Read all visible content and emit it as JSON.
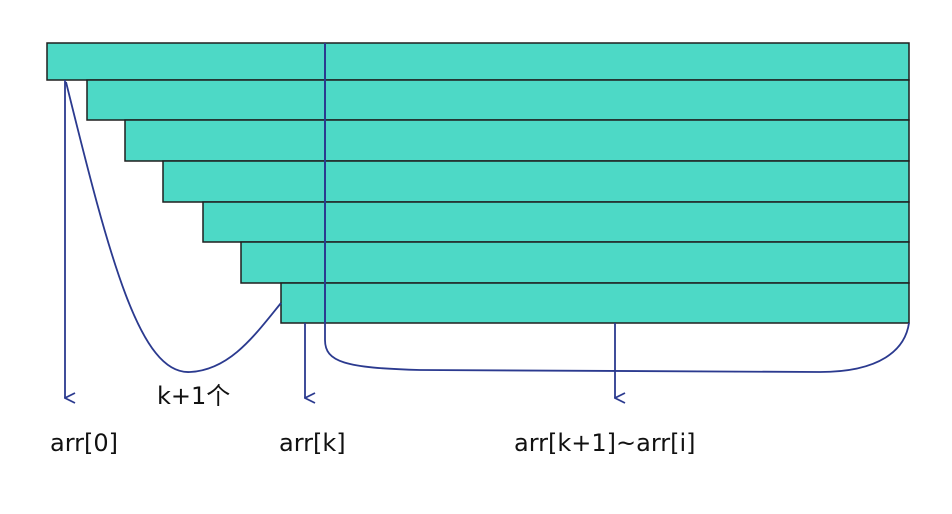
{
  "diagram": {
    "labels": {
      "count": "k+1个",
      "arr_0": "arr[0]",
      "arr_k": "arr[k]",
      "arr_range": "arr[k+1]~arr[i]"
    },
    "colors": {
      "bar_fill": "#4dd9c6",
      "bar_stroke": "#1f1f1f",
      "line": "#2b3a8f",
      "text": "#111111"
    },
    "bar_count": 7
  }
}
